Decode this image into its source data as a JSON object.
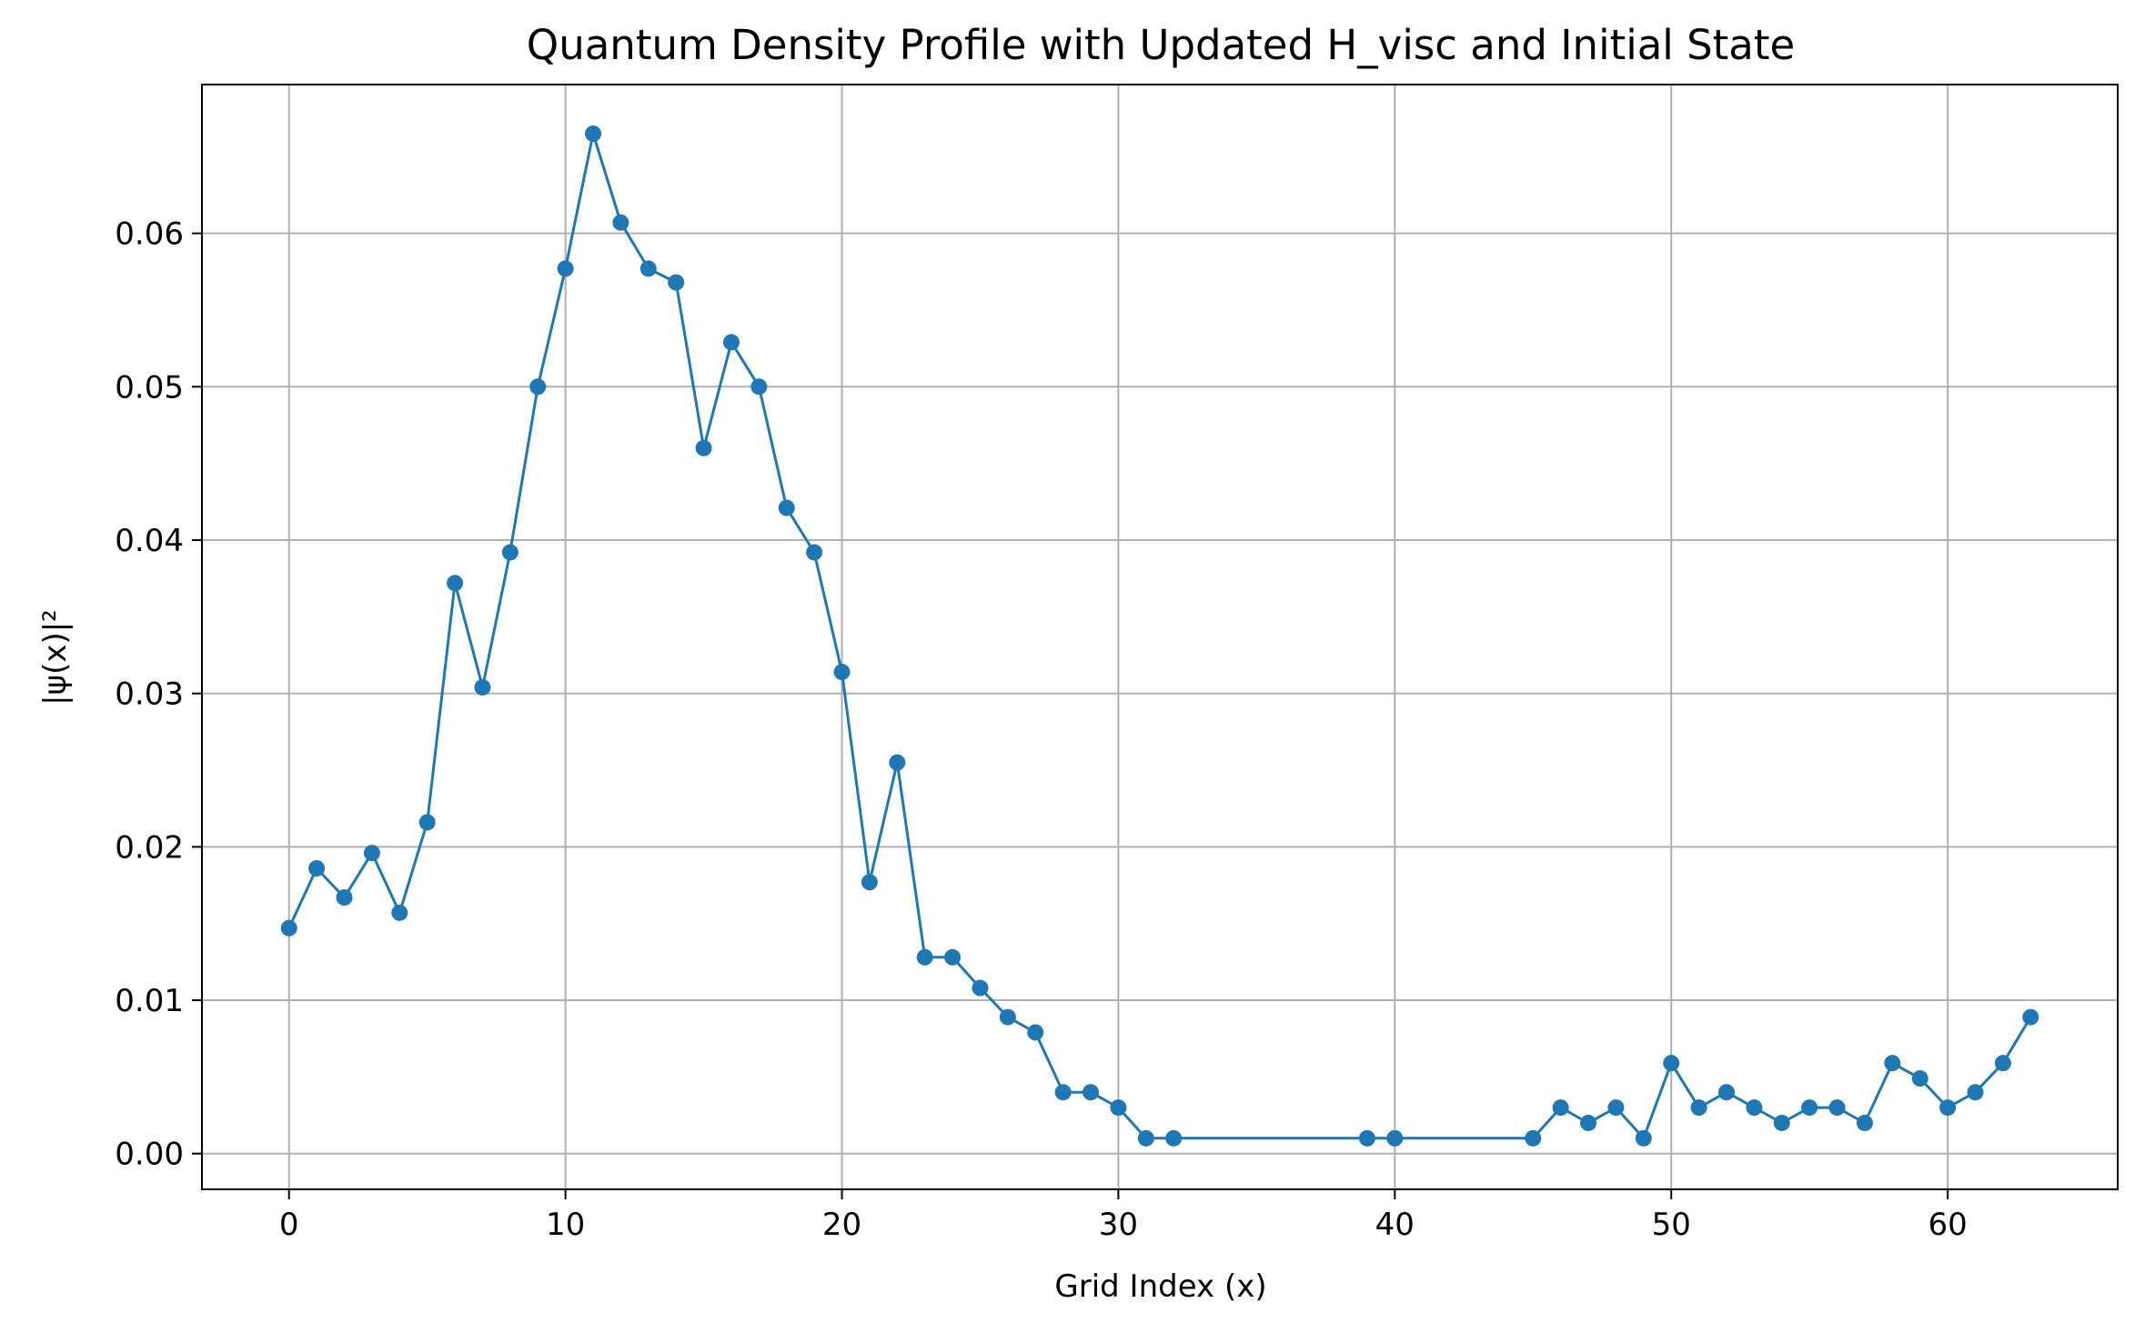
{
  "chart_data": {
    "type": "line",
    "title": "Quantum Density Profile with Updated H_visc and Initial State",
    "xlabel": "Grid Index (x)",
    "ylabel": "|ψ(x)|²",
    "xlim": [
      -3.15,
      66.15
    ],
    "ylim": [
      -0.00233,
      0.0697
    ],
    "x_ticks": [
      0,
      10,
      20,
      30,
      40,
      50,
      60
    ],
    "y_ticks": [
      0.0,
      0.01,
      0.02,
      0.03,
      0.04,
      0.05,
      0.06
    ],
    "x_tick_labels": [
      "0",
      "10",
      "20",
      "30",
      "40",
      "50",
      "60"
    ],
    "y_tick_labels": [
      "0.00",
      "0.01",
      "0.02",
      "0.03",
      "0.04",
      "0.05",
      "0.06"
    ],
    "grid": true,
    "colors": {
      "line": "#1f77b4",
      "grid": "#b0b0b0",
      "axes": "#000000"
    },
    "series": [
      {
        "x": [
          0,
          1,
          2,
          3,
          4,
          5,
          6,
          7,
          8,
          9,
          10,
          11,
          12,
          13,
          14,
          15,
          16,
          17,
          18,
          19,
          20,
          21,
          22,
          23,
          24,
          25,
          26,
          27,
          28,
          29,
          30,
          31,
          32,
          39,
          40,
          45,
          46,
          47,
          48,
          49,
          50,
          51,
          52,
          53,
          54,
          55,
          56,
          57,
          58,
          59,
          60,
          61,
          62,
          63
        ],
        "y": [
          0.0147,
          0.0186,
          0.0167,
          0.0196,
          0.0157,
          0.0216,
          0.0372,
          0.0304,
          0.0392,
          0.05,
          0.0577,
          0.0665,
          0.0607,
          0.0577,
          0.0568,
          0.046,
          0.0529,
          0.05,
          0.0421,
          0.0392,
          0.0314,
          0.0177,
          0.0255,
          0.0128,
          0.0128,
          0.0108,
          0.0089,
          0.0079,
          0.004,
          0.004,
          0.003,
          0.001,
          0.001,
          0.001,
          0.001,
          0.001,
          0.003,
          0.002,
          0.003,
          0.001,
          0.0059,
          0.003,
          0.004,
          0.003,
          0.002,
          0.003,
          0.003,
          0.002,
          0.0059,
          0.0049,
          0.003,
          0.004,
          0.0059,
          0.0089
        ]
      }
    ]
  }
}
